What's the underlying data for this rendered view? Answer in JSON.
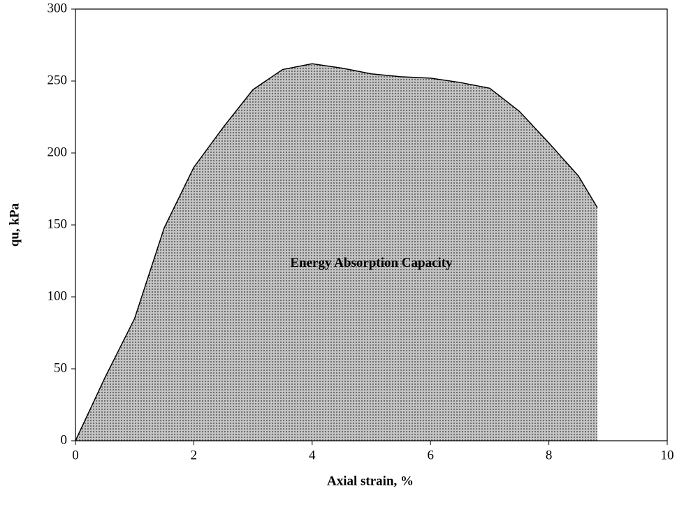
{
  "chart_data": {
    "type": "area",
    "xlabel": "Axial strain, %",
    "ylabel": "qu, kPa",
    "annotation": "Energy Absorption Capacity",
    "annotation_at": [
      5,
      123
    ],
    "x": [
      0,
      0.5,
      1,
      1.5,
      2,
      2.5,
      3,
      3.5,
      4,
      4.5,
      5,
      5.5,
      6,
      6.5,
      7,
      7.5,
      8,
      8.5,
      8.82
    ],
    "values": [
      0,
      44,
      85,
      148,
      190,
      218,
      244,
      258,
      262,
      259,
      255,
      253,
      252,
      249,
      245,
      229,
      207,
      184,
      162
    ],
    "color": "#b8b8b8",
    "xlim": [
      0,
      10
    ],
    "xticks": [
      0,
      2,
      4,
      6,
      8,
      10
    ],
    "ylim": [
      0,
      300
    ],
    "yticks": [
      0,
      50,
      100,
      150,
      200,
      250,
      300
    ],
    "grid": false
  }
}
